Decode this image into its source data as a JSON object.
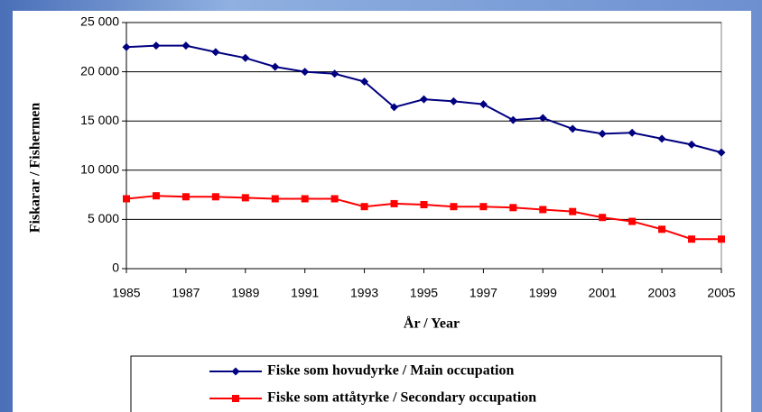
{
  "chart_data": {
    "type": "line",
    "x": [
      1985,
      1986,
      1987,
      1988,
      1989,
      1990,
      1991,
      1992,
      1993,
      1994,
      1995,
      1996,
      1997,
      1998,
      1999,
      2000,
      2001,
      2002,
      2003,
      2004,
      2005
    ],
    "series": [
      {
        "name": "Fiske som hovudyrke / Main occupation",
        "color": "#000080",
        "marker": "diamond",
        "values": [
          22500,
          22650,
          22650,
          22000,
          21400,
          20500,
          20000,
          19800,
          19000,
          16400,
          17200,
          17000,
          16700,
          15100,
          15300,
          14200,
          13700,
          13800,
          13200,
          12600,
          11800
        ]
      },
      {
        "name": "Fiske som attåtyrke / Secondary occupation",
        "color": "#ff0000",
        "marker": "square",
        "values": [
          7100,
          7400,
          7300,
          7300,
          7200,
          7100,
          7100,
          7100,
          6300,
          6600,
          6500,
          6300,
          6300,
          6200,
          6000,
          5800,
          5200,
          4800,
          4000,
          3000,
          3000
        ]
      }
    ],
    "xlabel": "År / Year",
    "ylabel": "Fiskarar / Fishermen",
    "xlim": [
      1985,
      2005
    ],
    "xticks": [
      1985,
      1987,
      1989,
      1991,
      1993,
      1995,
      1997,
      1999,
      2001,
      2003,
      2005
    ],
    "ylim": [
      0,
      25000
    ],
    "yticks": [
      0,
      {
        "value": 5000,
        "label": "5 000"
      },
      {
        "value": 10000,
        "label": "10 000"
      },
      {
        "value": 15000,
        "label": "15 000"
      },
      {
        "value": 20000,
        "label": "20 000"
      },
      {
        "value": 25000,
        "label": "25 000"
      }
    ],
    "grid": true,
    "legend": "bottom"
  }
}
